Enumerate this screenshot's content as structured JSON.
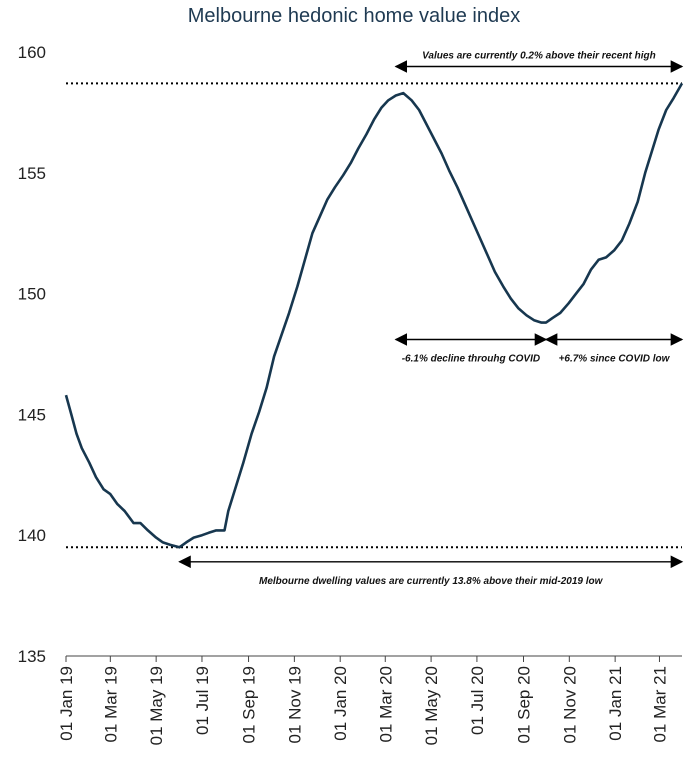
{
  "chart_data": {
    "type": "line",
    "title": "Melbourne hedonic home value index",
    "xlabel": "",
    "ylabel": "",
    "ylim": [
      135,
      160
    ],
    "yticks": [
      135,
      140,
      145,
      150,
      155,
      160
    ],
    "grid": false,
    "legend": "none",
    "x_ticks": [
      {
        "label": "01 Jan 19",
        "date": "2019-01-01"
      },
      {
        "label": "01 Mar 19",
        "date": "2019-03-01"
      },
      {
        "label": "01 May 19",
        "date": "2019-05-01"
      },
      {
        "label": "01 Jul 19",
        "date": "2019-07-01"
      },
      {
        "label": "01 Sep 19",
        "date": "2019-09-01"
      },
      {
        "label": "01 Nov 19",
        "date": "2019-11-01"
      },
      {
        "label": "01 Jan 20",
        "date": "2020-01-01"
      },
      {
        "label": "01 Mar 20",
        "date": "2020-03-01"
      },
      {
        "label": "01 May 20",
        "date": "2020-05-01"
      },
      {
        "label": "01 Jul 20",
        "date": "2020-07-01"
      },
      {
        "label": "01 Sep 20",
        "date": "2020-09-01"
      },
      {
        "label": "01 Nov 20",
        "date": "2020-11-01"
      },
      {
        "label": "01 Jan 21",
        "date": "2021-01-01"
      },
      {
        "label": "01 Mar 21",
        "date": "2021-03-01"
      }
    ],
    "x_range": [
      "2019-01-01",
      "2021-03-31"
    ],
    "series": [
      {
        "color": "#17374f",
        "points": [
          [
            "2019-01-01",
            145.8
          ],
          [
            "2019-01-08",
            145.0
          ],
          [
            "2019-01-15",
            144.2
          ],
          [
            "2019-01-22",
            143.6
          ],
          [
            "2019-02-01",
            143.0
          ],
          [
            "2019-02-10",
            142.4
          ],
          [
            "2019-02-20",
            141.9
          ],
          [
            "2019-03-01",
            141.7
          ],
          [
            "2019-03-10",
            141.3
          ],
          [
            "2019-03-20",
            141.0
          ],
          [
            "2019-04-01",
            140.5
          ],
          [
            "2019-04-10",
            140.5
          ],
          [
            "2019-04-20",
            140.2
          ],
          [
            "2019-05-01",
            139.9
          ],
          [
            "2019-05-10",
            139.7
          ],
          [
            "2019-05-20",
            139.6
          ],
          [
            "2019-06-01",
            139.5
          ],
          [
            "2019-06-10",
            139.7
          ],
          [
            "2019-06-20",
            139.9
          ],
          [
            "2019-07-01",
            140.0
          ],
          [
            "2019-07-10",
            140.1
          ],
          [
            "2019-07-20",
            140.2
          ],
          [
            "2019-07-31",
            140.2
          ],
          [
            "2019-08-05",
            141.0
          ],
          [
            "2019-08-15",
            142.0
          ],
          [
            "2019-08-25",
            143.0
          ],
          [
            "2019-09-05",
            144.2
          ],
          [
            "2019-09-15",
            145.1
          ],
          [
            "2019-09-25",
            146.1
          ],
          [
            "2019-10-05",
            147.4
          ],
          [
            "2019-10-15",
            148.3
          ],
          [
            "2019-10-25",
            149.2
          ],
          [
            "2019-11-05",
            150.3
          ],
          [
            "2019-11-15",
            151.4
          ],
          [
            "2019-11-25",
            152.5
          ],
          [
            "2019-12-05",
            153.2
          ],
          [
            "2019-12-15",
            153.9
          ],
          [
            "2019-12-25",
            154.4
          ],
          [
            "2020-01-05",
            154.9
          ],
          [
            "2020-01-15",
            155.4
          ],
          [
            "2020-01-25",
            156.0
          ],
          [
            "2020-02-05",
            156.6
          ],
          [
            "2020-02-15",
            157.2
          ],
          [
            "2020-02-25",
            157.7
          ],
          [
            "2020-03-05",
            158.0
          ],
          [
            "2020-03-15",
            158.2
          ],
          [
            "2020-03-25",
            158.3
          ],
          [
            "2020-04-05",
            158.0
          ],
          [
            "2020-04-15",
            157.6
          ],
          [
            "2020-04-25",
            157.0
          ],
          [
            "2020-05-05",
            156.4
          ],
          [
            "2020-05-15",
            155.8
          ],
          [
            "2020-05-25",
            155.1
          ],
          [
            "2020-06-05",
            154.4
          ],
          [
            "2020-06-15",
            153.7
          ],
          [
            "2020-06-25",
            153.0
          ],
          [
            "2020-07-05",
            152.3
          ],
          [
            "2020-07-15",
            151.6
          ],
          [
            "2020-07-25",
            150.9
          ],
          [
            "2020-08-05",
            150.3
          ],
          [
            "2020-08-15",
            149.8
          ],
          [
            "2020-08-25",
            149.4
          ],
          [
            "2020-09-05",
            149.1
          ],
          [
            "2020-09-15",
            148.9
          ],
          [
            "2020-09-25",
            148.8
          ],
          [
            "2020-10-01",
            148.8
          ],
          [
            "2020-10-10",
            149.0
          ],
          [
            "2020-10-20",
            149.2
          ],
          [
            "2020-10-31",
            149.6
          ],
          [
            "2020-11-10",
            150.0
          ],
          [
            "2020-11-20",
            150.4
          ],
          [
            "2020-11-30",
            151.0
          ],
          [
            "2020-12-10",
            151.4
          ],
          [
            "2020-12-20",
            151.5
          ],
          [
            "2020-12-31",
            151.8
          ],
          [
            "2021-01-10",
            152.2
          ],
          [
            "2021-01-20",
            152.9
          ],
          [
            "2021-01-31",
            153.8
          ],
          [
            "2021-02-10",
            155.0
          ],
          [
            "2021-02-20",
            156.0
          ],
          [
            "2021-02-28",
            156.8
          ],
          [
            "2021-03-10",
            157.6
          ],
          [
            "2021-03-20",
            158.1
          ],
          [
            "2021-03-31",
            158.7
          ]
        ]
      }
    ],
    "reference_lines": [
      {
        "y": 158.7,
        "style": "dotted"
      },
      {
        "y": 139.5,
        "style": "dotted"
      }
    ],
    "annotations": [
      {
        "text": "Values are currently 0.2% above their recent high",
        "x_from": "2020-03-15",
        "x_to": "2021-03-31",
        "y": 159.4
      },
      {
        "text": "-6.1% decline throuhg COVID",
        "x_from": "2020-03-15",
        "x_to": "2020-10-01",
        "y": 148.1
      },
      {
        "text": "+6.7% since COVID low",
        "x_from": "2020-10-01",
        "x_to": "2021-03-31",
        "y": 148.1
      },
      {
        "text": "Melbourne dwelling values are currently 13.8% above their mid-2019 low",
        "x_from": "2019-06-01",
        "x_to": "2021-03-31",
        "y": 138.9
      }
    ]
  }
}
